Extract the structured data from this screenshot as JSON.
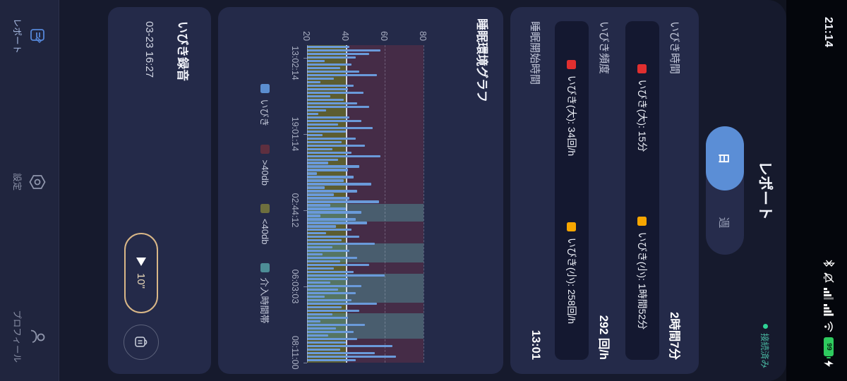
{
  "status": {
    "time": "21:14",
    "battery": "99"
  },
  "header": {
    "title": "レポート",
    "connection_label": "接続済み",
    "connection_color": "#49b8a2"
  },
  "tabs": {
    "day": "日",
    "week": "週",
    "selected": "日"
  },
  "stats": {
    "rows": [
      {
        "label": "いびき時間",
        "value": "2時間7分",
        "details": [
          {
            "color": "#e12f2f",
            "text": "いびき(大):  15分"
          },
          {
            "color": "#f7a600",
            "text": "いびき(小):  1時間52分"
          }
        ]
      },
      {
        "label": "いびき頻度",
        "value": "292 回/h",
        "details": [
          {
            "color": "#e12f2f",
            "text": "いびき(大):  34回/h"
          },
          {
            "color": "#f7a600",
            "text": "いびき(小):  258回/h"
          }
        ]
      },
      {
        "label": "睡眠開始時間",
        "value": "13:01",
        "details": []
      }
    ]
  },
  "chart_data": {
    "type": "bar",
    "title": "睡眠環境グラフ",
    "y_range": [
      20,
      80
    ],
    "y_ticks": [
      20,
      40,
      60,
      80
    ],
    "x_labels": [
      "13:02:14",
      "19:01:14",
      "02:44:12",
      "06:03:03",
      "08:11:00"
    ],
    "series": [
      {
        "name": "いびき",
        "color": "#6a9ada",
        "values": [
          42,
          58,
          52,
          45,
          29,
          43,
          37,
          47,
          56,
          34,
          27,
          44,
          41,
          49,
          32,
          39,
          46,
          52,
          30,
          26,
          42,
          48,
          36,
          54,
          40,
          28,
          45,
          38,
          50,
          33,
          43,
          58,
          36,
          31,
          47,
          41,
          25,
          44,
          39,
          53,
          29,
          46,
          34,
          42,
          57,
          32,
          40,
          48,
          27,
          45,
          51,
          35,
          43,
          30,
          47,
          38,
          55,
          33,
          42,
          28,
          46,
          37,
          52,
          34,
          44,
          60,
          41,
          32,
          48,
          36,
          45,
          29,
          43,
          56,
          38,
          47,
          33,
          41,
          27,
          50,
          35,
          44,
          31,
          46,
          40,
          64,
          37,
          55,
          66,
          45
        ]
      }
    ],
    "zones": [
      {
        "name": "<40db",
        "color": "#5c5d31",
        "from": 20,
        "to": 40
      },
      {
        "name": ">40db",
        "color": "#452c47",
        "from": 40,
        "to": 80
      }
    ],
    "intervention_bands": {
      "name": "介入時間帯",
      "color": "#4d8d96",
      "ranges": [
        [
          0.5,
          0.555
        ],
        [
          0.625,
          0.685
        ],
        [
          0.72,
          0.81
        ],
        [
          0.845,
          0.925
        ]
      ]
    },
    "gridlines": {
      "solid": [
        40
      ],
      "dashed": [
        60,
        80
      ]
    },
    "legend": [
      {
        "label": "いびき",
        "color": "#5b8ed0"
      },
      {
        "label": ">40db",
        "color": "#5e2f3f"
      },
      {
        "label": "<40db",
        "color": "#6e6f3e"
      },
      {
        "label": "介入時間帯",
        "color": "#4d8d96"
      }
    ],
    "legend_position": "bottom"
  },
  "recording": {
    "title": "いびき録音",
    "timestamp": "03-23 16:27",
    "duration": "10\""
  },
  "nav": {
    "items": [
      {
        "label": "レポート",
        "icon": "report-icon",
        "active": true
      },
      {
        "label": "設定",
        "icon": "settings-icon",
        "active": false
      },
      {
        "label": "プロフィール",
        "icon": "profile-icon",
        "active": false
      }
    ]
  }
}
